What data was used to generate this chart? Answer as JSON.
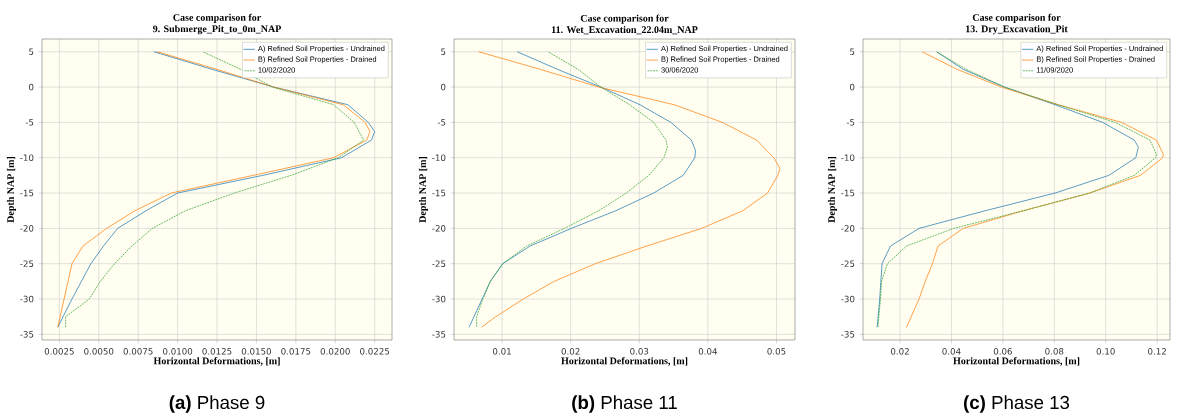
{
  "chart_data": [
    {
      "type": "line",
      "title": "Case comparison for",
      "subtitle": "9. Submerge_Pit_to_0m_NAP",
      "xlabel": "Horizontal Deformations, [m]",
      "ylabel": "Depth NAP [m]",
      "annotations": [
        "**(a)** Phase 9"
      ],
      "xlim": [
        0.0014,
        0.0236
      ],
      "ylim": [
        -35.8,
        6.8
      ],
      "xticks": [
        0.0025,
        {
          "value": 0.005,
          "label": "0.0050"
        },
        0.0075,
        {
          "value": 0.01,
          "label": "0.0100"
        },
        0.0125,
        {
          "value": 0.015,
          "label": "0.0150"
        },
        0.0175,
        {
          "value": 0.02,
          "label": "0.0200"
        },
        0.0225
      ],
      "yticks": [
        -35,
        -30,
        -25,
        -20,
        -15,
        -10,
        -5,
        0,
        5
      ],
      "grid": true,
      "legend": "top right",
      "series": [
        {
          "name": "A) Refined Soil Properties - Undrained",
          "color": "#1f77b4",
          "x": [
            0.0085,
            0.0122,
            0.0161,
            0.0208,
            0.0221,
            0.0225,
            0.0223,
            0.0204,
            0.0154,
            0.01,
            0.008,
            0.0062,
            0.0053,
            0.0045,
            0.0033,
            0.0024
          ],
          "values": [
            5,
            2.5,
            0,
            -2.5,
            -5,
            -6.3,
            -7.5,
            -10,
            -12.5,
            -15,
            -17.5,
            -20,
            -22.5,
            -25,
            -30,
            -34
          ]
        },
        {
          "name": "B) Refined Soil Properties - Drained",
          "color": "#ff7f0e",
          "x": [
            0.0087,
            0.0125,
            0.0161,
            0.0205,
            0.0219,
            0.0222,
            0.022,
            0.0199,
            0.0148,
            0.0096,
            0.0073,
            0.0055,
            0.004,
            0.0033,
            0.0028,
            0.0024
          ],
          "values": [
            5,
            2.5,
            0,
            -2.5,
            -5,
            -6.3,
            -7.5,
            -10,
            -12.5,
            -15,
            -17.5,
            -20,
            -22.5,
            -25,
            -30,
            -34
          ]
        },
        {
          "name": "10/02/2020",
          "color": "#2ca02c",
          "line_style": "dashed",
          "x": [
            0.0116,
            0.014,
            0.016,
            0.0199,
            0.0212,
            0.0218,
            0.0202,
            0.0172,
            0.0136,
            0.0105,
            0.0084,
            0.0071,
            0.006,
            0.0051,
            0.0044,
            0.0029,
            0.0029
          ],
          "values": [
            5,
            2.5,
            0,
            -2.5,
            -5,
            -7.5,
            -10,
            -12.5,
            -15,
            -17.5,
            -20,
            -22.5,
            -25,
            -27.5,
            -30,
            -32.5,
            -34
          ]
        }
      ]
    },
    {
      "type": "line",
      "title": "Case comparison for",
      "subtitle": "11. Wet_Excavation_22.04m_NAP",
      "xlabel": "Horizontal Deformations, [m]",
      "ylabel": "Depth NAP [m]",
      "annotations": [
        "**(b)** Phase 11"
      ],
      "xlim": [
        0.003,
        0.0527
      ],
      "ylim": [
        -35.8,
        6.8
      ],
      "xticks": [
        0.01,
        0.02,
        0.03,
        0.04,
        0.05
      ],
      "yticks": [
        -35,
        -30,
        -25,
        -20,
        -15,
        -10,
        -5,
        0,
        5
      ],
      "grid": true,
      "legend": "top right",
      "series": [
        {
          "name": "A) Refined Soil Properties - Undrained",
          "color": "#1f77b4",
          "x": [
            0.0122,
            0.0181,
            0.0244,
            0.0301,
            0.0346,
            0.0376,
            0.0382,
            0.0381,
            0.0364,
            0.0321,
            0.0266,
            0.0201,
            0.0141,
            0.0101,
            0.0083,
            0.0071,
            0.0052
          ],
          "values": [
            5,
            2.5,
            0,
            -2.5,
            -5,
            -7.5,
            -9,
            -10,
            -12.5,
            -15,
            -17.5,
            -20,
            -22.5,
            -25,
            -27.5,
            -30,
            -34
          ]
        },
        {
          "name": "B) Refined Soil Properties - Drained",
          "color": "#ff7f0e",
          "x": [
            0.0066,
            0.0156,
            0.0241,
            0.0351,
            0.0421,
            0.0471,
            0.0496,
            0.0505,
            0.0502,
            0.0487,
            0.0451,
            0.0391,
            0.0311,
            0.0236,
            0.0176,
            0.0131,
            0.0091,
            0.007
          ],
          "values": [
            5,
            2.5,
            0,
            -2.5,
            -5,
            -7.5,
            -10,
            -11.5,
            -12.5,
            -15,
            -17.5,
            -20,
            -22.5,
            -25,
            -27.5,
            -30,
            -32.5,
            -34
          ]
        },
        {
          "name": "30/06/2020",
          "color": "#2ca02c",
          "line_style": "dashed",
          "x": [
            0.0167,
            0.0211,
            0.0244,
            0.0286,
            0.0321,
            0.0339,
            0.0341,
            0.0336,
            0.0314,
            0.0281,
            0.0241,
            0.0191,
            0.0136,
            0.0101,
            0.0083,
            0.0072,
            0.0063,
            0.0063
          ],
          "values": [
            5,
            2.5,
            0,
            -2.5,
            -5,
            -7.5,
            -8.5,
            -10,
            -12.5,
            -15,
            -17.5,
            -20,
            -22.5,
            -25,
            -27.5,
            -30,
            -32.5,
            -34
          ]
        }
      ]
    },
    {
      "type": "line",
      "title": "Case comparison for",
      "subtitle": "13. Dry_Excavation_Pit",
      "xlabel": "Horizontal Deformations, [m]",
      "ylabel": "Depth NAP [m]",
      "annotations": [
        "**(c)** Phase 13"
      ],
      "xlim": [
        0.0056,
        0.125
      ],
      "ylim": [
        -35.8,
        6.8
      ],
      "xticks": [
        0.02,
        0.04,
        0.06,
        0.08,
        {
          "value": 0.1,
          "label": "0.10"
        },
        {
          "value": 0.12,
          "label": "0.12"
        }
      ],
      "yticks": [
        -35,
        -30,
        -25,
        -20,
        -15,
        -10,
        -5,
        0,
        5
      ],
      "grid": true,
      "legend": "top right",
      "series": [
        {
          "name": "A) Refined Soil Properties - Undrained",
          "color": "#1f77b4",
          "x": [
            0.0342,
            0.0446,
            0.0606,
            0.0803,
            0.0988,
            0.1111,
            0.1127,
            0.1117,
            0.1012,
            0.0803,
            0.0532,
            0.0274,
            0.0163,
            0.013,
            0.0121,
            0.0111
          ],
          "values": [
            5,
            2.5,
            0,
            -2.5,
            -5,
            -7.5,
            -8.5,
            -10,
            -12.5,
            -15,
            -17.5,
            -20,
            -22.5,
            -25,
            -30,
            -34
          ]
        },
        {
          "name": "B) Refined Soil Properties - Drained",
          "color": "#ff7f0e",
          "x": [
            0.0286,
            0.0422,
            0.0594,
            0.0815,
            0.1062,
            0.1197,
            0.1224,
            0.1222,
            0.1135,
            0.0938,
            0.068,
            0.0446,
            0.0348,
            0.0326,
            0.0298,
            0.0274,
            0.0225
          ],
          "values": [
            5,
            2.5,
            0,
            -2.5,
            -5,
            -7.5,
            -9.5,
            -10,
            -12.5,
            -15,
            -17.5,
            -20,
            -22.5,
            -25,
            -27.5,
            -30,
            -34
          ]
        },
        {
          "name": "11/09/2020",
          "color": "#2ca02c",
          "line_style": "dashed",
          "x": [
            0.0342,
            0.0458,
            0.0606,
            0.0815,
            0.1037,
            0.1172,
            0.1197,
            0.1194,
            0.1111,
            0.0938,
            0.068,
            0.0409,
            0.0225,
            0.0151,
            0.0128,
            0.0124,
            0.0114
          ],
          "values": [
            5,
            2.5,
            0,
            -2.5,
            -5,
            -7.5,
            -9.5,
            -10,
            -12.5,
            -15,
            -17.5,
            -20,
            -22.5,
            -25,
            -27.5,
            -30,
            -34
          ]
        }
      ]
    }
  ]
}
